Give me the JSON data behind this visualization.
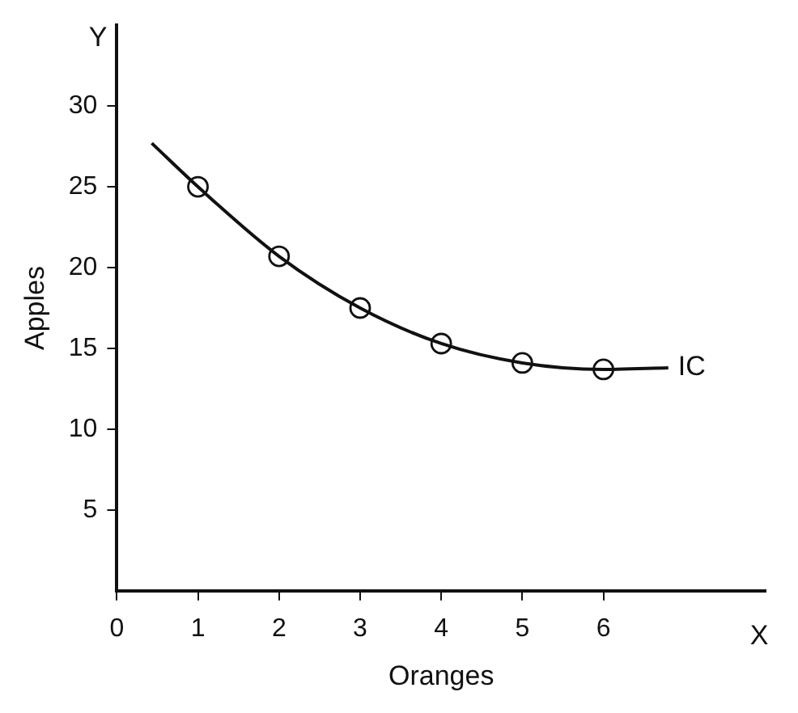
{
  "chart_data": {
    "type": "line",
    "xlabel": "Oranges",
    "ylabel": "Apples",
    "annotations": [
      "X",
      "Y"
    ],
    "series": [
      {
        "name": "IC",
        "color": "#111111",
        "marker": "none",
        "x": [
          0.43,
          1,
          2,
          3,
          4,
          5,
          6,
          6.8
        ],
        "values": [
          27.7,
          25,
          20.7,
          17.5,
          15.3,
          14.1,
          13.7,
          13.8
        ]
      },
      {
        "type": "scatter",
        "color": "#111111",
        "marker": "circle",
        "x": [
          1,
          2,
          3,
          4,
          5,
          6
        ],
        "values": [
          25,
          20.7,
          17.5,
          15.3,
          14.1,
          13.7
        ]
      }
    ],
    "xlim": [
      0,
      8
    ],
    "xticks": [
      0,
      1,
      2,
      3,
      4,
      5,
      6
    ],
    "ylim": [
      0,
      35
    ],
    "yticks": [
      5,
      10,
      15,
      20,
      25,
      30
    ],
    "grid": false,
    "legend": false
  }
}
